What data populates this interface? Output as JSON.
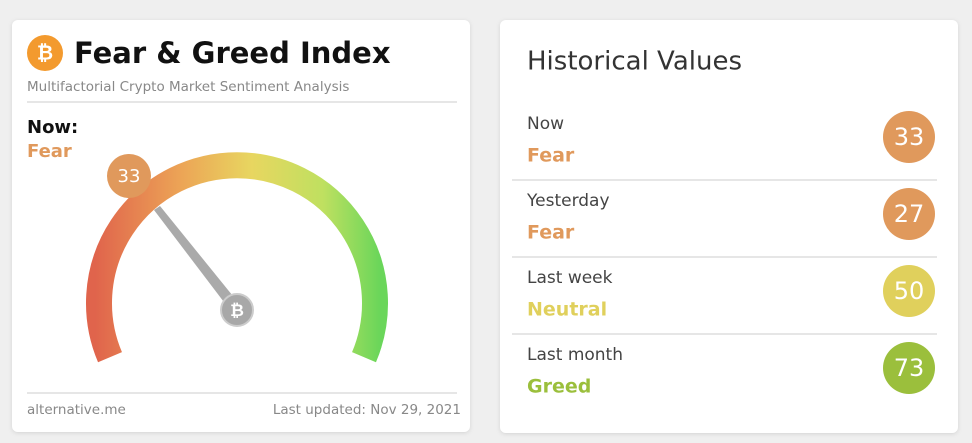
{
  "widget": {
    "title": "Fear & Greed Index",
    "subtitle": "Multifactorial Crypto Market Sentiment Analysis",
    "now_label": "Now:",
    "now_status": "Fear",
    "value": 33,
    "source": "alternative.me",
    "updated": "Last updated: Nov 29, 2021"
  },
  "history": {
    "title": "Historical Values",
    "rows": [
      {
        "label": "Now",
        "status": "Fear",
        "value": 33,
        "color": "#e0995c"
      },
      {
        "label": "Yesterday",
        "status": "Fear",
        "value": 27,
        "color": "#e0995c"
      },
      {
        "label": "Last week",
        "status": "Neutral",
        "value": 50,
        "color": "#e0d05c"
      },
      {
        "label": "Last month",
        "status": "Greed",
        "value": 73,
        "color": "#9bbf3c"
      }
    ]
  }
}
